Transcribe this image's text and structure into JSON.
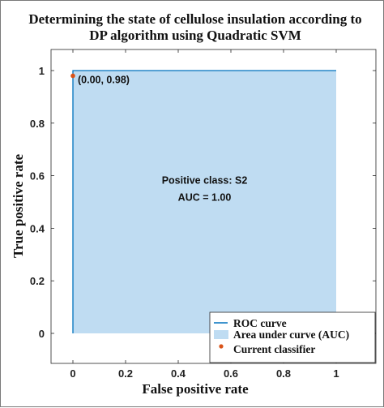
{
  "chart_data": {
    "type": "line",
    "title_line1": "Determining the state of cellulose insulation according to",
    "title_line2": "DP algorithm using Quadratic SVM",
    "xlabel": "False positive rate",
    "ylabel": "True positive rate",
    "xlim": [
      0,
      1
    ],
    "ylim": [
      0,
      1
    ],
    "xticks": [
      0,
      0.2,
      0.4,
      0.6,
      0.8,
      1
    ],
    "yticks": [
      0,
      0.2,
      0.4,
      0.6,
      0.8,
      1
    ],
    "xtick_labels": [
      "0",
      "0.2",
      "0.4",
      "0.6",
      "0.8",
      "1"
    ],
    "ytick_labels": [
      "0",
      "0.2",
      "0.4",
      "0.6",
      "0.8",
      "1"
    ],
    "grid": false,
    "roc_curve": {
      "x": [
        0,
        0,
        1
      ],
      "y": [
        0,
        1,
        1
      ]
    },
    "current_classifier": {
      "x": 0.0,
      "y": 0.98,
      "label": "(0.00, 0.98)"
    },
    "annotation_line1": "Positive class: S2",
    "annotation_line2": "AUC = 1.00",
    "legend": {
      "placement": "bottom-right",
      "entries": [
        "ROC curve",
        "Area under curve (AUC)",
        "Current classifier"
      ]
    },
    "colors": {
      "roc_line": "#0072bd",
      "auc_fill": "#bfdcf2",
      "classifier_marker": "#d95319",
      "axes": "#262626"
    }
  }
}
